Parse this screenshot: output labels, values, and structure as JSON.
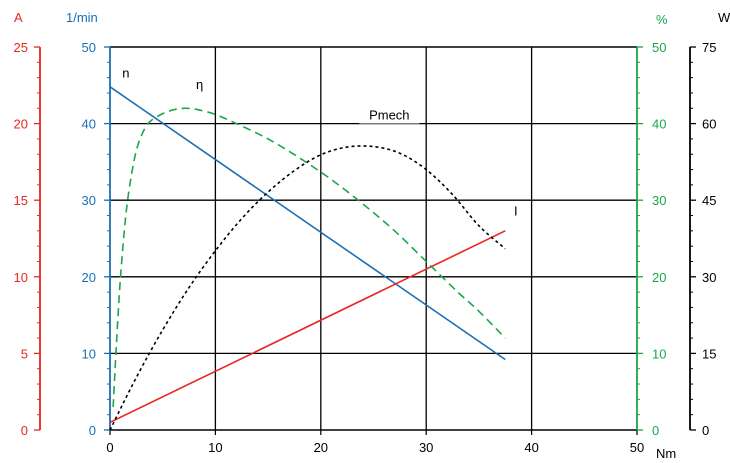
{
  "chart_data": {
    "type": "line",
    "title": "",
    "x_axis": {
      "unit": "Nm",
      "range": [
        0,
        50
      ],
      "ticks": [
        0,
        10,
        20,
        30,
        40,
        50
      ],
      "tick_labels": [
        "0",
        "10",
        "20",
        "30",
        "40",
        "50"
      ],
      "grid": true
    },
    "y_axes": [
      {
        "id": "current",
        "unit": "A",
        "side": "left-outer",
        "range": [
          0,
          25
        ],
        "ticks": [
          0,
          5,
          10,
          15,
          20,
          25
        ],
        "tick_labels": [
          "0",
          "5",
          "10",
          "15",
          "20",
          "25"
        ],
        "color": "#e8271f"
      },
      {
        "id": "speed",
        "unit": "1/min",
        "side": "left-inner",
        "range": [
          0,
          50
        ],
        "ticks": [
          0,
          10,
          20,
          30,
          40,
          50
        ],
        "tick_labels": [
          "0",
          "10",
          "20",
          "30",
          "40",
          "50"
        ],
        "color": "#1a6fb5",
        "grid": true
      },
      {
        "id": "efficiency",
        "unit": "%",
        "side": "right-inner",
        "range": [
          0,
          50
        ],
        "ticks": [
          0,
          10,
          20,
          30,
          40,
          50
        ],
        "tick_labels": [
          "0",
          "10",
          "20",
          "30",
          "40",
          "50"
        ],
        "color": "#1aa64a"
      },
      {
        "id": "power",
        "unit": "W",
        "side": "right-outer",
        "range": [
          0,
          75
        ],
        "ticks": [
          0,
          15,
          30,
          45,
          60,
          75
        ],
        "tick_labels": [
          "0",
          "15",
          "30",
          "45",
          "60",
          "75"
        ],
        "color": "#000000"
      }
    ],
    "series": [
      {
        "name": "n",
        "axis": "speed",
        "style": "solid",
        "color": "#1a6fb5",
        "x": [
          0,
          37.5
        ],
        "y": [
          44.8,
          9.2
        ]
      },
      {
        "name": "I",
        "axis": "current",
        "style": "solid",
        "color": "#e8271f",
        "x": [
          0,
          37.5
        ],
        "y": [
          0.5,
          13
        ]
      },
      {
        "name": "η",
        "axis": "efficiency",
        "style": "dashed",
        "color": "#1aa64a",
        "x": [
          0.3,
          0.6,
          1,
          1.5,
          2,
          2.5,
          3,
          3.5,
          4,
          5,
          6,
          7,
          8,
          9,
          10,
          12,
          15,
          18,
          21,
          24,
          27,
          30,
          33,
          35,
          37.5
        ],
        "y": [
          3,
          11,
          20,
          28,
          33,
          36.5,
          38.5,
          39.8,
          40.5,
          41.3,
          41.8,
          42,
          41.9,
          41.6,
          41.2,
          40,
          38,
          35.5,
          32.7,
          29.5,
          26,
          22,
          18,
          15.5,
          12
        ]
      },
      {
        "name": "Pmech",
        "axis": "power",
        "style": "dotted",
        "color": "#000000",
        "x": [
          0,
          2.5,
          5,
          7.5,
          10,
          12.5,
          15,
          17.5,
          20,
          22.5,
          25,
          27.5,
          30,
          32.5,
          35,
          37.5
        ],
        "y": [
          0,
          10.3,
          19.6,
          27.9,
          35.1,
          41.4,
          46.6,
          50.8,
          53.9,
          55.4,
          55.5,
          54.2,
          51.0,
          46.1,
          40,
          35.5
        ]
      }
    ],
    "annotations": [
      {
        "text": "n",
        "series": "n",
        "x": 1.5,
        "y": 46
      },
      {
        "text": "η",
        "series": "η",
        "x": 8.5,
        "y": 44.5
      },
      {
        "text": "Pmech",
        "series": "Pmech",
        "x": 26.5,
        "y": 61
      },
      {
        "text": "I",
        "series": "I",
        "x": 38.5,
        "y": 14
      }
    ]
  }
}
